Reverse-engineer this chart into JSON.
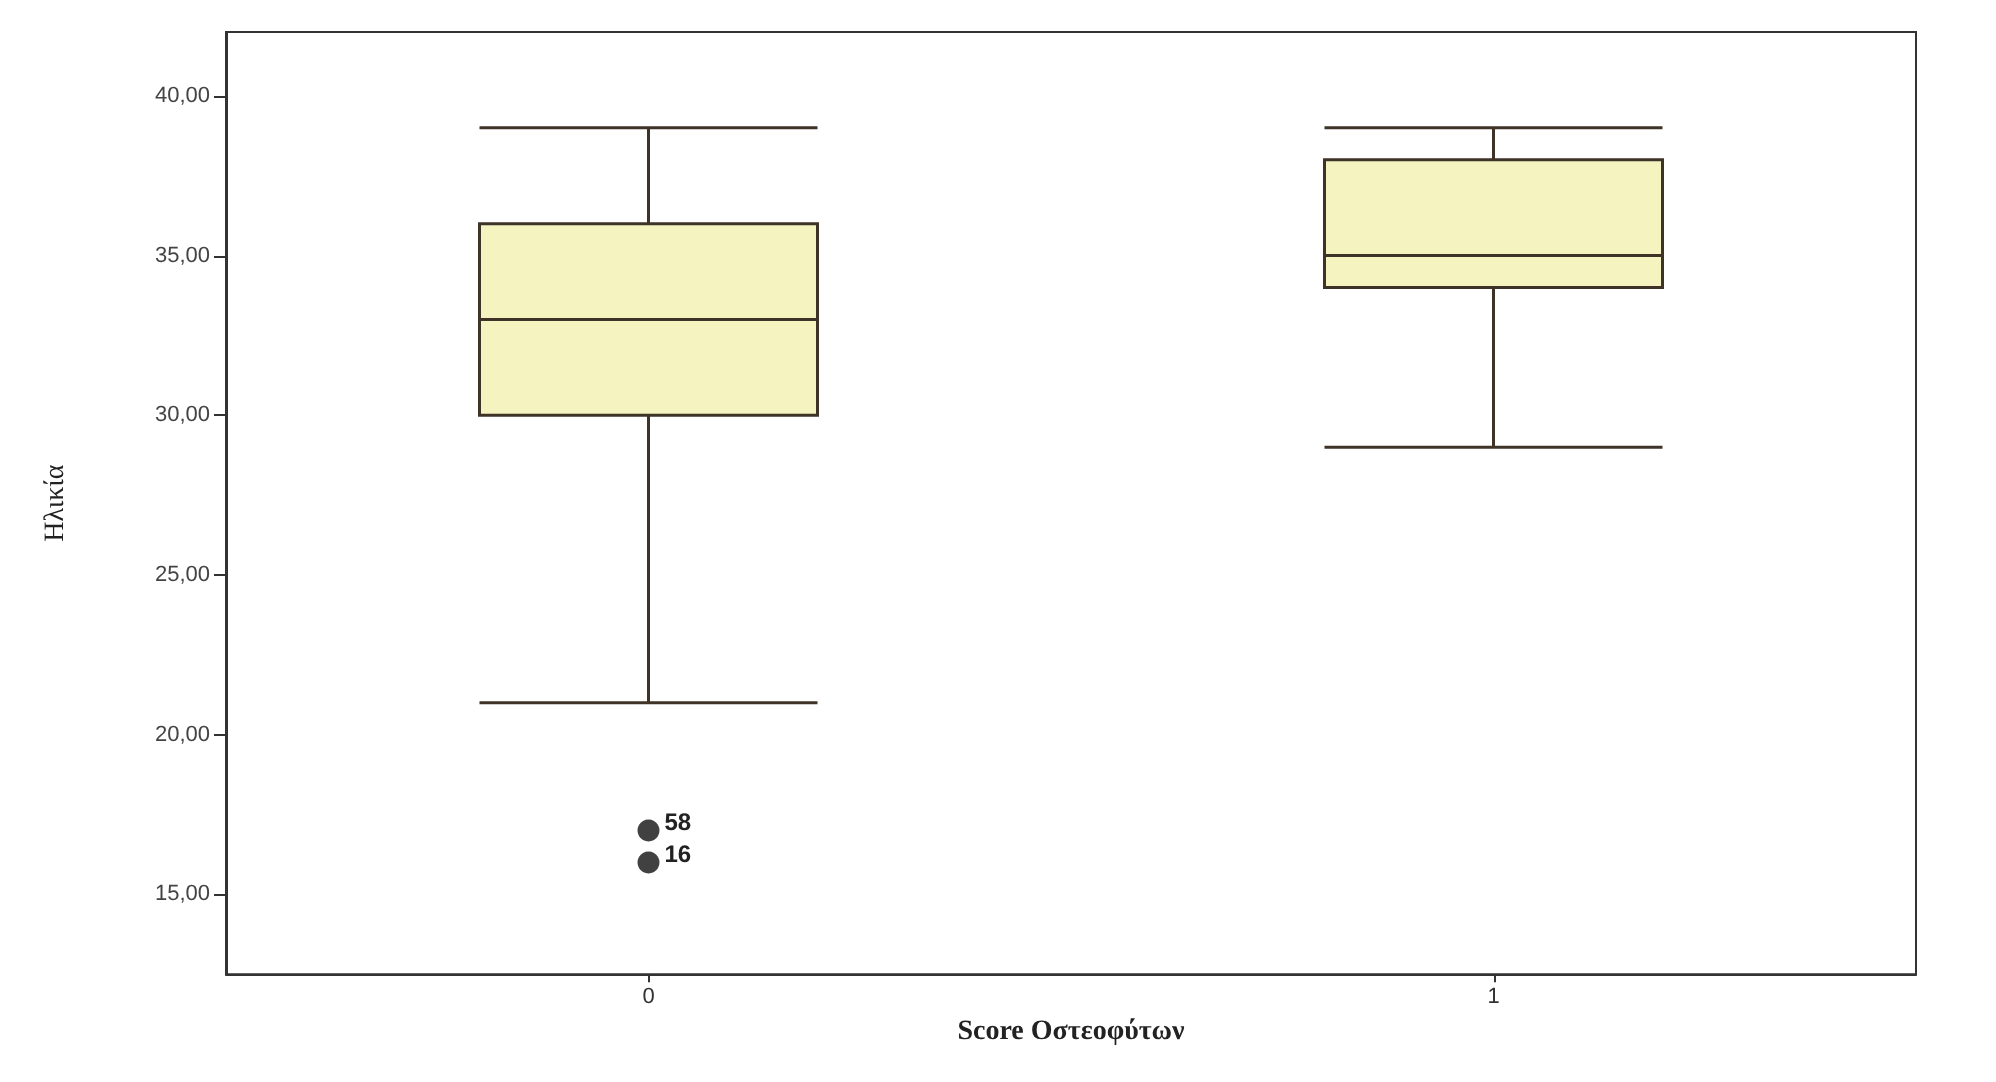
{
  "chart_data": {
    "type": "box",
    "xlabel": "Score Οστεοφύτων",
    "ylabel": "Ηλικία",
    "categories": [
      "0",
      "1"
    ],
    "series": [
      {
        "color": "#f5f3c0",
        "boxes": [
          {
            "low": 21,
            "q1": 30,
            "median": 33,
            "q3": 36,
            "high": 39,
            "outliers": [
              17,
              16
            ]
          },
          {
            "low": 29,
            "q1": 34,
            "median": 35,
            "q3": 38,
            "high": 39
          }
        ]
      }
    ],
    "ylim": [
      12.5,
      42
    ],
    "yticks": [
      {
        "value": 15,
        "label": "15,00"
      },
      {
        "value": 20,
        "label": "20,00"
      },
      {
        "value": 25,
        "label": "25,00"
      },
      {
        "value": 30,
        "label": "30,00"
      },
      {
        "value": 35,
        "label": "35,00"
      },
      {
        "value": 40,
        "label": "40,00"
      }
    ],
    "grid": false,
    "annotations": [
      "58",
      "16"
    ]
  }
}
